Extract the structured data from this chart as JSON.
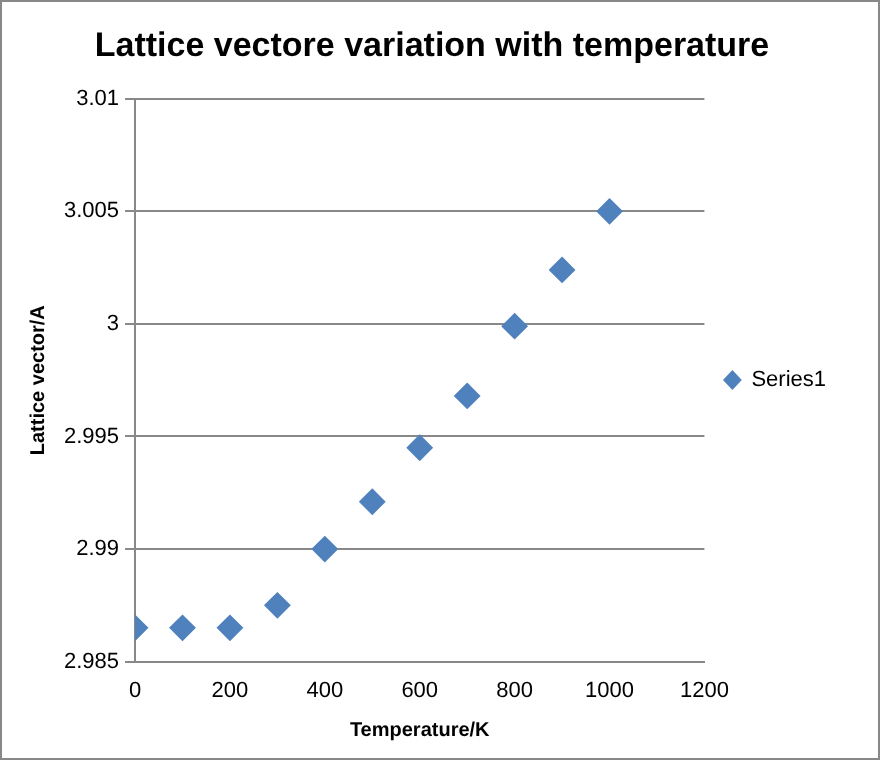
{
  "chart_data": {
    "type": "scatter",
    "title": "Lattice vectore variation with temperature",
    "xlabel": "Temperature/K",
    "ylabel": "Lattice vector/A",
    "x": [
      0,
      100,
      200,
      300,
      400,
      500,
      600,
      700,
      800,
      900,
      1000
    ],
    "series": [
      {
        "name": "Series1",
        "color": "#4f81bd",
        "values": [
          2.9865,
          2.9865,
          2.9865,
          2.9875,
          2.99,
          2.9921,
          2.9945,
          2.9968,
          2.9999,
          3.0024,
          3.005
        ]
      }
    ],
    "xlim": [
      0,
      1200
    ],
    "xticks": [
      0,
      200,
      400,
      600,
      800,
      1000,
      1200
    ],
    "ylim": [
      2.985,
      3.01
    ],
    "yticks": [
      2.985,
      2.99,
      2.995,
      3,
      3.005,
      3.01
    ],
    "grid": "y",
    "legend": "right",
    "marker": "diamond"
  }
}
